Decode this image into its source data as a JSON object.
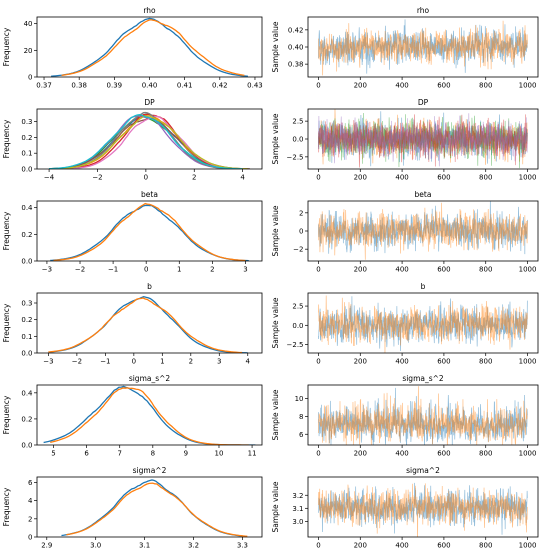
{
  "colors": {
    "series": [
      "#1f77b4",
      "#ff7f0e",
      "#2ca02c",
      "#d62728",
      "#9467bd",
      "#8c564b",
      "#e377c2",
      "#7f7f7f",
      "#bcbd22",
      "#17becf"
    ]
  },
  "layout_rows": 6,
  "chart_data": [
    {
      "type": "line",
      "kind": "density",
      "title": "rho",
      "xlabel": "",
      "ylabel": "Frequency",
      "xlim": [
        0.368,
        0.432
      ],
      "ylim": [
        0,
        45
      ],
      "xticks": [
        0.37,
        0.38,
        0.39,
        0.4,
        0.41,
        0.42,
        0.43
      ],
      "xtick_labels": [
        "0.37",
        "0.38",
        "0.39",
        "0.40",
        "0.41",
        "0.42",
        "0.43"
      ],
      "yticks": [
        0,
        20,
        40
      ],
      "ytick_labels": [
        "0",
        "20",
        "40"
      ],
      "series": [
        {
          "mean": 0.4,
          "sd": 0.0095,
          "peak": 43,
          "skew": 0.0,
          "x": [
            0.372,
            0.428
          ]
        },
        {
          "mean": 0.401,
          "sd": 0.0098,
          "peak": 42,
          "skew": 0.05,
          "x": [
            0.375,
            0.427
          ]
        }
      ]
    },
    {
      "type": "line",
      "kind": "trace",
      "title": "rho",
      "xlabel": "",
      "ylabel": "Sample value",
      "xlim": [
        -50,
        1050
      ],
      "ylim": [
        0.365,
        0.435
      ],
      "xticks": [
        0,
        200,
        400,
        600,
        800,
        1000
      ],
      "xtick_labels": [
        "0",
        "200",
        "400",
        "600",
        "800",
        "1000"
      ],
      "yticks": [
        0.38,
        0.4,
        0.42
      ],
      "ytick_labels": [
        "0.38",
        "0.40",
        "0.42"
      ],
      "series": [
        {
          "mean": 0.4,
          "sd": 0.0095,
          "n": 1000
        },
        {
          "mean": 0.4,
          "sd": 0.0095,
          "n": 1000
        }
      ]
    },
    {
      "type": "line",
      "kind": "density",
      "title": "DP",
      "xlabel": "",
      "ylabel": "Frequency",
      "xlim": [
        -4.5,
        4.8
      ],
      "ylim": [
        0,
        0.38
      ],
      "xticks": [
        -4,
        -2,
        0,
        2,
        4
      ],
      "xtick_labels": [
        "−4",
        "−2",
        "0",
        "2",
        "4"
      ],
      "yticks": [
        0,
        0.1,
        0.2,
        0.3
      ],
      "ytick_labels": [
        "0.0",
        "0.1",
        "0.2",
        "0.3"
      ],
      "series": [
        {
          "mean": 0.0,
          "sd": 1.2,
          "peak": 0.34,
          "skew": 0.0,
          "x": [
            -4.0,
            4.2
          ]
        },
        {
          "mean": 0.1,
          "sd": 1.15,
          "peak": 0.34,
          "skew": 0.05,
          "x": [
            -3.8,
            4.0
          ]
        },
        {
          "mean": -0.1,
          "sd": 1.2,
          "peak": 0.33,
          "skew": 0.0,
          "x": [
            -3.9,
            4.1
          ]
        },
        {
          "mean": 0.2,
          "sd": 1.1,
          "peak": 0.35,
          "skew": 0.0,
          "x": [
            -3.5,
            4.0
          ]
        },
        {
          "mean": -0.2,
          "sd": 1.15,
          "peak": 0.34,
          "skew": 0.0,
          "x": [
            -3.8,
            3.8
          ]
        },
        {
          "mean": 0.05,
          "sd": 1.25,
          "peak": 0.32,
          "skew": 0.0,
          "x": [
            -4.0,
            4.3
          ]
        },
        {
          "mean": 0.3,
          "sd": 1.1,
          "peak": 0.33,
          "skew": 0.0,
          "x": [
            -3.2,
            4.1
          ]
        },
        {
          "mean": -0.05,
          "sd": 1.1,
          "peak": 0.35,
          "skew": 0.0,
          "x": [
            -3.6,
            3.9
          ]
        },
        {
          "mean": 0.15,
          "sd": 1.2,
          "peak": 0.33,
          "skew": 0.0,
          "x": [
            -3.7,
            4.2
          ]
        },
        {
          "mean": -0.15,
          "sd": 1.2,
          "peak": 0.34,
          "skew": 0.0,
          "x": [
            -4.0,
            4.0
          ]
        }
      ]
    },
    {
      "type": "line",
      "kind": "trace",
      "title": "DP",
      "xlabel": "",
      "ylabel": "Sample value",
      "xlim": [
        -50,
        1050
      ],
      "ylim": [
        -4.2,
        4.2
      ],
      "xticks": [
        0,
        200,
        400,
        600,
        800,
        1000
      ],
      "xtick_labels": [
        "0",
        "200",
        "400",
        "600",
        "800",
        "1000"
      ],
      "yticks": [
        -2.5,
        0,
        2.5
      ],
      "ytick_labels": [
        "−2.5",
        "0.0",
        "2.5"
      ],
      "series": [
        {
          "mean": 0,
          "sd": 1.2,
          "n": 1000
        },
        {
          "mean": 0,
          "sd": 1.2,
          "n": 1000
        },
        {
          "mean": 0,
          "sd": 1.2,
          "n": 1000
        },
        {
          "mean": 0,
          "sd": 1.2,
          "n": 1000
        },
        {
          "mean": 0,
          "sd": 1.2,
          "n": 1000
        }
      ]
    },
    {
      "type": "line",
      "kind": "density",
      "title": "beta",
      "xlabel": "",
      "ylabel": "Frequency",
      "xlim": [
        -3.3,
        3.5
      ],
      "ylim": [
        0,
        0.45
      ],
      "xticks": [
        -3,
        -2,
        -1,
        0,
        1,
        2,
        3
      ],
      "xtick_labels": [
        "−3",
        "−2",
        "−1",
        "0",
        "1",
        "2",
        "3"
      ],
      "yticks": [
        0,
        0.2,
        0.4
      ],
      "ytick_labels": [
        "0.0",
        "0.2",
        "0.4"
      ],
      "series": [
        {
          "mean": 0.0,
          "sd": 0.97,
          "peak": 0.41,
          "skew": 0.0,
          "x": [
            -2.9,
            3.1
          ]
        },
        {
          "mean": 0.05,
          "sd": 0.95,
          "peak": 0.42,
          "skew": 0.05,
          "x": [
            -2.8,
            3.0
          ]
        }
      ]
    },
    {
      "type": "line",
      "kind": "trace",
      "title": "beta",
      "xlabel": "",
      "ylabel": "Sample value",
      "xlim": [
        -50,
        1050
      ],
      "ylim": [
        -3.3,
        3.3
      ],
      "xticks": [
        0,
        200,
        400,
        600,
        800,
        1000
      ],
      "xtick_labels": [
        "0",
        "200",
        "400",
        "600",
        "800",
        "1000"
      ],
      "yticks": [
        -2,
        0,
        2
      ],
      "ytick_labels": [
        "−2",
        "0",
        "2"
      ],
      "series": [
        {
          "mean": 0,
          "sd": 0.95,
          "n": 1000
        },
        {
          "mean": 0,
          "sd": 0.95,
          "n": 1000
        }
      ]
    },
    {
      "type": "line",
      "kind": "density",
      "title": "b",
      "xlabel": "",
      "ylabel": "Frequency",
      "xlim": [
        -3.4,
        4.5
      ],
      "ylim": [
        0,
        0.36
      ],
      "xticks": [
        -3,
        -2,
        -1,
        0,
        1,
        2,
        3,
        4
      ],
      "xtick_labels": [
        "−3",
        "−2",
        "−1",
        "0",
        "1",
        "2",
        "3",
        "4"
      ],
      "yticks": [
        0,
        0.1,
        0.2,
        0.3
      ],
      "ytick_labels": [
        "0.0",
        "0.1",
        "0.2",
        "0.3"
      ],
      "series": [
        {
          "mean": 0.15,
          "sd": 1.1,
          "peak": 0.33,
          "skew": 0.25,
          "x": [
            -3.0,
            4.0
          ]
        },
        {
          "mean": 0.2,
          "sd": 1.15,
          "peak": 0.32,
          "skew": 0.2,
          "x": [
            -3.0,
            3.8
          ]
        }
      ]
    },
    {
      "type": "line",
      "kind": "trace",
      "title": "b",
      "xlabel": "",
      "ylabel": "Sample value",
      "xlim": [
        -50,
        1050
      ],
      "ylim": [
        -3.6,
        4.2
      ],
      "xticks": [
        0,
        200,
        400,
        600,
        800,
        1000
      ],
      "xtick_labels": [
        "0",
        "200",
        "400",
        "600",
        "800",
        "1000"
      ],
      "yticks": [
        -2.5,
        0,
        2.5
      ],
      "ytick_labels": [
        "−2.5",
        "0.0",
        "2.5"
      ],
      "series": [
        {
          "mean": 0.1,
          "sd": 1.1,
          "n": 1000
        },
        {
          "mean": 0.1,
          "sd": 1.1,
          "n": 1000
        }
      ]
    },
    {
      "type": "line",
      "kind": "density",
      "title": "sigma_s^2",
      "xlabel": "",
      "ylabel": "Frequency",
      "xlim": [
        4.5,
        11.3
      ],
      "ylim": [
        0,
        0.46
      ],
      "xticks": [
        5,
        6,
        7,
        8,
        9,
        10,
        11
      ],
      "xtick_labels": [
        "5",
        "6",
        "7",
        "8",
        "9",
        "10",
        "11"
      ],
      "yticks": [
        0,
        0.2,
        0.4
      ],
      "ytick_labels": [
        "0.0",
        "0.2",
        "0.4"
      ],
      "series": [
        {
          "mean": 6.9,
          "sd": 0.95,
          "peak": 0.42,
          "skew": 0.7,
          "x": [
            4.7,
            11.1
          ]
        },
        {
          "mean": 7.05,
          "sd": 0.92,
          "peak": 0.43,
          "skew": 0.6,
          "x": [
            4.9,
            10.9
          ]
        }
      ]
    },
    {
      "type": "line",
      "kind": "trace",
      "title": "sigma_s^2",
      "xlabel": "",
      "ylabel": "Sample value",
      "xlim": [
        -50,
        1050
      ],
      "ylim": [
        4.8,
        11.5
      ],
      "xticks": [
        0,
        200,
        400,
        600,
        800,
        1000
      ],
      "xtick_labels": [
        "0",
        "200",
        "400",
        "600",
        "800",
        "1000"
      ],
      "yticks": [
        6,
        8,
        10
      ],
      "ytick_labels": [
        "6",
        "8",
        "10"
      ],
      "series": [
        {
          "mean": 7.1,
          "sd": 0.9,
          "n": 1000,
          "skew": 0.7
        },
        {
          "mean": 7.1,
          "sd": 0.9,
          "n": 1000,
          "skew": 0.7
        }
      ]
    },
    {
      "type": "line",
      "kind": "density",
      "title": "sigma^2",
      "xlabel": "",
      "ylabel": "Frequency",
      "xlim": [
        2.88,
        3.34
      ],
      "ylim": [
        0,
        6.6
      ],
      "xticks": [
        2.9,
        3.0,
        3.1,
        3.2,
        3.3
      ],
      "xtick_labels": [
        "2.9",
        "3.0",
        "3.1",
        "3.2",
        "3.3"
      ],
      "yticks": [
        0,
        2,
        4,
        6
      ],
      "ytick_labels": [
        "0",
        "2",
        "4",
        "6"
      ],
      "series": [
        {
          "mean": 3.11,
          "sd": 0.067,
          "peak": 6.1,
          "skew": 0.0,
          "x": [
            2.93,
            3.3
          ]
        },
        {
          "mean": 3.112,
          "sd": 0.068,
          "peak": 5.8,
          "skew": 0.0,
          "x": [
            2.94,
            3.31
          ]
        }
      ]
    },
    {
      "type": "line",
      "kind": "trace",
      "title": "sigma^2",
      "xlabel": "",
      "ylabel": "Sample value",
      "xlim": [
        -50,
        1050
      ],
      "ylim": [
        2.88,
        3.34
      ],
      "xticks": [
        0,
        200,
        400,
        600,
        800,
        1000
      ],
      "xtick_labels": [
        "0",
        "200",
        "400",
        "600",
        "800",
        "1000"
      ],
      "yticks": [
        3.0,
        3.1,
        3.2
      ],
      "ytick_labels": [
        "3.0",
        "3.1",
        "3.2"
      ],
      "series": [
        {
          "mean": 3.11,
          "sd": 0.065,
          "n": 1000
        },
        {
          "mean": 3.11,
          "sd": 0.065,
          "n": 1000
        }
      ]
    }
  ]
}
